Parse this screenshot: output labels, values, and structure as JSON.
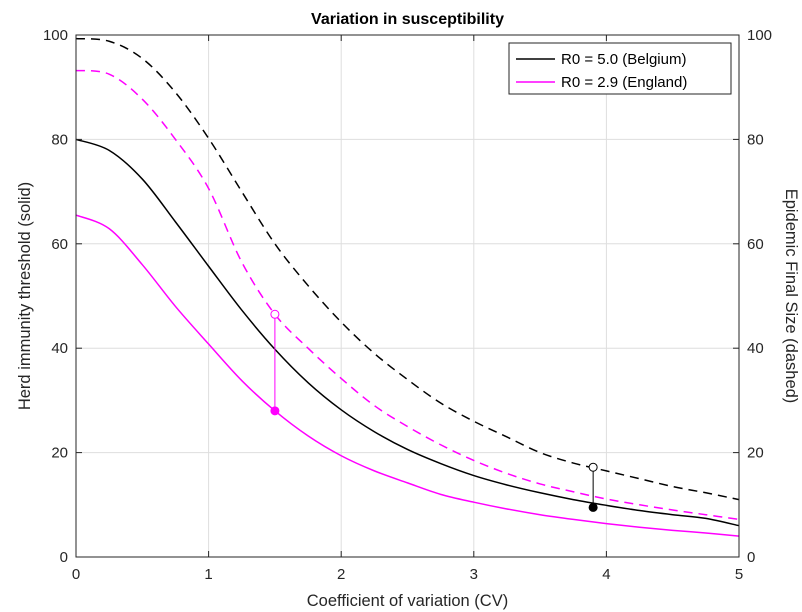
{
  "chart_data": {
    "type": "line",
    "title": "Variation in susceptibility",
    "xlabel": "Coefficient of variation (CV)",
    "ylabel_left": "Herd immunity threshold (solid)",
    "ylabel_right": "Epidemic Final Size (dashed)",
    "xlim": [
      0,
      5
    ],
    "ylim": [
      0,
      100
    ],
    "xticks": [
      "0",
      "1",
      "2",
      "3",
      "4",
      "5"
    ],
    "yticks": [
      "0",
      "20",
      "40",
      "60",
      "80",
      "100"
    ],
    "grid": true,
    "legend_position": "top-right",
    "x": [
      0,
      0.25,
      0.5,
      0.75,
      1,
      1.25,
      1.5,
      1.75,
      2,
      2.25,
      2.5,
      2.75,
      3,
      3.25,
      3.5,
      3.75,
      4,
      4.25,
      4.5,
      4.75,
      5
    ],
    "series": [
      {
        "name": "R0 = 5.0 (Belgium)",
        "color": "#000000",
        "style": "solid",
        "values": [
          80.0,
          77.9,
          72.4,
          64.2,
          55.7,
          47.3,
          39.8,
          33.4,
          28.2,
          24.0,
          20.6,
          17.9,
          15.6,
          13.8,
          12.3,
          11.0,
          9.9,
          8.9,
          8.1,
          7.4,
          6.0
        ]
      },
      {
        "name": "R0 = 2.9 (England)",
        "color": "#ff00ff",
        "style": "solid",
        "values": [
          65.5,
          62.9,
          56.0,
          48.0,
          40.8,
          33.8,
          28.0,
          23.2,
          19.4,
          16.5,
          14.2,
          12.0,
          10.5,
          9.2,
          8.1,
          7.2,
          6.4,
          5.7,
          5.1,
          4.6,
          4.0
        ]
      },
      {
        "name": "",
        "color": "#000000",
        "style": "dashed",
        "values": [
          99.3,
          98.8,
          95.5,
          89.0,
          80.2,
          70.0,
          60.0,
          52.0,
          45.0,
          39.0,
          34.0,
          29.5,
          26.0,
          23.0,
          20.0,
          18.0,
          16.5,
          15.0,
          13.5,
          12.3,
          11.0
        ]
      },
      {
        "name": "",
        "color": "#ff00ff",
        "style": "dashed",
        "values": [
          93.2,
          92.5,
          87.7,
          80.0,
          70.6,
          56.5,
          46.5,
          40.0,
          34.2,
          29.0,
          25.0,
          21.5,
          18.5,
          16.0,
          14.0,
          12.5,
          11.1,
          10.0,
          9.0,
          8.1,
          7.2
        ]
      }
    ],
    "markers": [
      {
        "x": 1.5,
        "y_threshold": 28.0,
        "y_final": 46.5,
        "color": "#ff00ff"
      },
      {
        "x": 3.9,
        "y_threshold": 9.5,
        "y_final": 17.2,
        "color": "#000000"
      }
    ]
  }
}
